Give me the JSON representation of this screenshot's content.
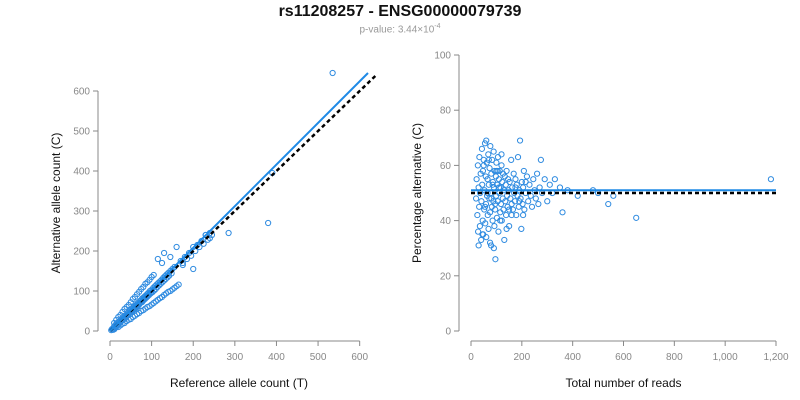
{
  "header": {
    "title": "rs11208257 - ENSG00000079739",
    "pvalue_label": "p-value: 3.44×10",
    "pvalue_exponent": "-4"
  },
  "colors": {
    "points": "#2f8be0",
    "fit_line": "#1f8ae6",
    "reference_line": "#000000",
    "axis": "#888888"
  },
  "chart_data": [
    {
      "type": "scatter",
      "xlabel": "Reference allele count (T)",
      "ylabel": "Alternative allele count (C)",
      "xlim": [
        0,
        620
      ],
      "ylim": [
        0,
        640
      ],
      "xticks": [
        0,
        100,
        200,
        300,
        400,
        500,
        600
      ],
      "xtick_labels": [
        "0",
        "100",
        "200",
        "300",
        "400",
        "500",
        "600"
      ],
      "yticks": [
        0,
        100,
        200,
        300,
        400,
        500,
        600
      ],
      "ytick_labels": [
        "0",
        "100",
        "200",
        "300",
        "400",
        "500",
        "600"
      ],
      "fit_line": {
        "style": "solid",
        "points": [
          [
            0,
            0
          ],
          [
            620,
            645
          ]
        ]
      },
      "reference_line": {
        "style": "dashed",
        "points": [
          [
            0,
            0
          ],
          [
            640,
            640
          ]
        ]
      },
      "points": [
        [
          5,
          5
        ],
        [
          8,
          7
        ],
        [
          10,
          12
        ],
        [
          12,
          9
        ],
        [
          14,
          15
        ],
        [
          15,
          18
        ],
        [
          17,
          14
        ],
        [
          18,
          20
        ],
        [
          20,
          22
        ],
        [
          22,
          19
        ],
        [
          24,
          26
        ],
        [
          25,
          23
        ],
        [
          27,
          30
        ],
        [
          28,
          25
        ],
        [
          30,
          32
        ],
        [
          32,
          28
        ],
        [
          33,
          35
        ],
        [
          35,
          38
        ],
        [
          36,
          31
        ],
        [
          38,
          40
        ],
        [
          40,
          36
        ],
        [
          42,
          45
        ],
        [
          43,
          41
        ],
        [
          45,
          48
        ],
        [
          47,
          44
        ],
        [
          48,
          52
        ],
        [
          50,
          47
        ],
        [
          52,
          55
        ],
        [
          54,
          50
        ],
        [
          55,
          58
        ],
        [
          57,
          53
        ],
        [
          58,
          61
        ],
        [
          60,
          56
        ],
        [
          62,
          64
        ],
        [
          63,
          59
        ],
        [
          65,
          68
        ],
        [
          67,
          62
        ],
        [
          68,
          71
        ],
        [
          70,
          66
        ],
        [
          72,
          75
        ],
        [
          73,
          70
        ],
        [
          75,
          78
        ],
        [
          77,
          72
        ],
        [
          78,
          82
        ],
        [
          80,
          76
        ],
        [
          82,
          85
        ],
        [
          84,
          80
        ],
        [
          85,
          88
        ],
        [
          87,
          83
        ],
        [
          89,
          92
        ],
        [
          90,
          86
        ],
        [
          92,
          95
        ],
        [
          94,
          90
        ],
        [
          96,
          100
        ],
        [
          98,
          94
        ],
        [
          100,
          103
        ],
        [
          102,
          97
        ],
        [
          104,
          108
        ],
        [
          106,
          101
        ],
        [
          108,
          112
        ],
        [
          110,
          105
        ],
        [
          112,
          116
        ],
        [
          114,
          110
        ],
        [
          116,
          120
        ],
        [
          118,
          114
        ],
        [
          120,
          124
        ],
        [
          122,
          118
        ],
        [
          124,
          128
        ],
        [
          126,
          122
        ],
        [
          128,
          133
        ],
        [
          130,
          126
        ],
        [
          132,
          137
        ],
        [
          134,
          130
        ],
        [
          136,
          141
        ],
        [
          138,
          134
        ],
        [
          140,
          145
        ],
        [
          142,
          138
        ],
        [
          145,
          150
        ],
        [
          148,
          144
        ],
        [
          150,
          155
        ],
        [
          10,
          20
        ],
        [
          15,
          28
        ],
        [
          20,
          35
        ],
        [
          25,
          40
        ],
        [
          30,
          48
        ],
        [
          35,
          55
        ],
        [
          40,
          60
        ],
        [
          45,
          65
        ],
        [
          50,
          72
        ],
        [
          55,
          80
        ],
        [
          60,
          85
        ],
        [
          65,
          92
        ],
        [
          70,
          98
        ],
        [
          75,
          105
        ],
        [
          80,
          110
        ],
        [
          85,
          118
        ],
        [
          90,
          122
        ],
        [
          95,
          128
        ],
        [
          100,
          135
        ],
        [
          105,
          140
        ],
        [
          20,
          10
        ],
        [
          25,
          14
        ],
        [
          30,
          18
        ],
        [
          35,
          20
        ],
        [
          40,
          25
        ],
        [
          45,
          28
        ],
        [
          50,
          30
        ],
        [
          55,
          35
        ],
        [
          60,
          38
        ],
        [
          65,
          42
        ],
        [
          70,
          45
        ],
        [
          75,
          50
        ],
        [
          80,
          52
        ],
        [
          85,
          56
        ],
        [
          90,
          60
        ],
        [
          95,
          62
        ],
        [
          100,
          66
        ],
        [
          105,
          70
        ],
        [
          110,
          74
        ],
        [
          115,
          78
        ],
        [
          120,
          82
        ],
        [
          125,
          85
        ],
        [
          130,
          90
        ],
        [
          135,
          94
        ],
        [
          140,
          98
        ],
        [
          145,
          100
        ],
        [
          150,
          104
        ],
        [
          155,
          108
        ],
        [
          160,
          112
        ],
        [
          165,
          116
        ],
        [
          3,
          2
        ],
        [
          6,
          4
        ],
        [
          8,
          3
        ],
        [
          9,
          6
        ],
        [
          11,
          5
        ],
        [
          13,
          10
        ],
        [
          16,
          11
        ],
        [
          19,
          16
        ],
        [
          21,
          17
        ],
        [
          23,
          21
        ],
        [
          26,
          24
        ],
        [
          29,
          27
        ],
        [
          31,
          29
        ],
        [
          34,
          33
        ],
        [
          37,
          34
        ],
        [
          39,
          37
        ],
        [
          41,
          39
        ],
        [
          44,
          42
        ],
        [
          46,
          43
        ],
        [
          49,
          46
        ],
        [
          51,
          49
        ],
        [
          53,
          51
        ],
        [
          56,
          54
        ],
        [
          59,
          57
        ],
        [
          61,
          60
        ],
        [
          64,
          62
        ],
        [
          66,
          65
        ],
        [
          69,
          67
        ],
        [
          71,
          69
        ],
        [
          74,
          72
        ],
        [
          76,
          74
        ],
        [
          79,
          77
        ],
        [
          81,
          79
        ],
        [
          83,
          82
        ],
        [
          86,
          84
        ],
        [
          88,
          86
        ],
        [
          91,
          89
        ],
        [
          93,
          91
        ],
        [
          97,
          95
        ],
        [
          99,
          97
        ],
        [
          170,
          175
        ],
        [
          175,
          170
        ],
        [
          180,
          185
        ],
        [
          185,
          180
        ],
        [
          190,
          195
        ],
        [
          195,
          188
        ],
        [
          200,
          210
        ],
        [
          205,
          200
        ],
        [
          210,
          215
        ],
        [
          215,
          210
        ],
        [
          220,
          225
        ],
        [
          225,
          218
        ],
        [
          230,
          240
        ],
        [
          235,
          228
        ],
        [
          240,
          245
        ],
        [
          245,
          240
        ],
        [
          115,
          180
        ],
        [
          130,
          195
        ],
        [
          155,
          160
        ],
        [
          175,
          165
        ],
        [
          200,
          155
        ],
        [
          230,
          240
        ],
        [
          240,
          232
        ],
        [
          285,
          245
        ],
        [
          380,
          270
        ],
        [
          390,
          395
        ],
        [
          535,
          645
        ],
        [
          160,
          210
        ],
        [
          145,
          185
        ],
        [
          125,
          170
        ]
      ]
    },
    {
      "type": "scatter",
      "xlabel": "Total number of reads",
      "ylabel": "Percentage alternative (C)",
      "xlim": [
        0,
        1200
      ],
      "ylim": [
        0,
        100
      ],
      "xticks": [
        0,
        200,
        400,
        600,
        800,
        1000,
        1200
      ],
      "xtick_labels": [
        "0",
        "200",
        "400",
        "600",
        "800",
        "1,000",
        "1,200"
      ],
      "yticks": [
        0,
        20,
        40,
        60,
        80,
        100
      ],
      "ytick_labels": [
        "0",
        "20",
        "40",
        "60",
        "80",
        "100"
      ],
      "fit_line": {
        "style": "solid",
        "y": 51
      },
      "reference_line": {
        "style": "dashed",
        "y": 50
      },
      "points": [
        [
          20,
          48
        ],
        [
          22,
          55
        ],
        [
          25,
          42
        ],
        [
          27,
          60
        ],
        [
          28,
          36
        ],
        [
          30,
          52
        ],
        [
          32,
          45
        ],
        [
          33,
          63
        ],
        [
          35,
          38
        ],
        [
          36,
          50
        ],
        [
          38,
          57
        ],
        [
          40,
          33
        ],
        [
          41,
          47
        ],
        [
          43,
          66
        ],
        [
          44,
          53
        ],
        [
          46,
          40
        ],
        [
          47,
          58
        ],
        [
          48,
          35
        ],
        [
          50,
          62
        ],
        [
          52,
          44
        ],
        [
          53,
          51
        ],
        [
          55,
          68
        ],
        [
          56,
          39
        ],
        [
          58,
          56
        ],
        [
          59,
          46
        ],
        [
          60,
          34
        ],
        [
          62,
          61
        ],
        [
          63,
          49
        ],
        [
          65,
          55
        ],
        [
          66,
          42
        ],
        [
          68,
          64
        ],
        [
          69,
          37
        ],
        [
          70,
          53
        ],
        [
          72,
          48
        ],
        [
          73,
          59
        ],
        [
          75,
          43
        ],
        [
          76,
          67
        ],
        [
          78,
          50
        ],
        [
          79,
          31
        ],
        [
          80,
          57
        ],
        [
          82,
          45
        ],
        [
          83,
          62
        ],
        [
          85,
          40
        ],
        [
          86,
          54
        ],
        [
          88,
          47
        ],
        [
          89,
          65
        ],
        [
          90,
          52
        ],
        [
          92,
          38
        ],
        [
          93,
          58
        ],
        [
          95,
          44
        ],
        [
          96,
          26
        ],
        [
          98,
          56
        ],
        [
          99,
          49
        ],
        [
          100,
          61
        ],
        [
          102,
          41
        ],
        [
          103,
          53
        ],
        [
          105,
          47
        ],
        [
          106,
          63
        ],
        [
          108,
          36
        ],
        [
          110,
          55
        ],
        [
          111,
          50
        ],
        [
          113,
          58
        ],
        [
          115,
          43
        ],
        [
          116,
          52
        ],
        [
          118,
          46
        ],
        [
          120,
          60
        ],
        [
          121,
          40
        ],
        [
          123,
          54
        ],
        [
          125,
          48
        ],
        [
          126,
          57
        ],
        [
          128,
          44
        ],
        [
          130,
          51
        ],
        [
          131,
          33
        ],
        [
          133,
          56
        ],
        [
          135,
          47
        ],
        [
          137,
          53
        ],
        [
          138,
          42
        ],
        [
          140,
          58
        ],
        [
          142,
          49
        ],
        [
          144,
          45
        ],
        [
          146,
          55
        ],
        [
          148,
          51
        ],
        [
          150,
          38
        ],
        [
          152,
          54
        ],
        [
          155,
          48
        ],
        [
          158,
          62
        ],
        [
          160,
          46
        ],
        [
          162,
          52
        ],
        [
          165,
          44
        ],
        [
          168,
          57
        ],
        [
          170,
          50
        ],
        [
          173,
          47
        ],
        [
          175,
          55
        ],
        [
          178,
          42
        ],
        [
          180,
          53
        ],
        [
          183,
          49
        ],
        [
          185,
          63
        ],
        [
          188,
          45
        ],
        [
          190,
          51
        ],
        [
          193,
          69
        ],
        [
          195,
          48
        ],
        [
          198,
          37
        ],
        [
          200,
          54
        ],
        [
          203,
          46
        ],
        [
          205,
          52
        ],
        [
          208,
          58
        ],
        [
          210,
          44
        ],
        [
          215,
          50
        ],
        [
          220,
          56
        ],
        [
          225,
          47
        ],
        [
          230,
          53
        ],
        [
          235,
          49
        ],
        [
          240,
          45
        ],
        [
          245,
          55
        ],
        [
          250,
          51
        ],
        [
          255,
          48
        ],
        [
          260,
          57
        ],
        [
          265,
          46
        ],
        [
          270,
          52
        ],
        [
          275,
          62
        ],
        [
          280,
          50
        ],
        [
          290,
          55
        ],
        [
          300,
          47
        ],
        [
          310,
          53
        ],
        [
          320,
          50
        ],
        [
          330,
          55
        ],
        [
          350,
          52
        ],
        [
          360,
          43
        ],
        [
          380,
          51
        ],
        [
          420,
          49
        ],
        [
          480,
          51
        ],
        [
          500,
          50
        ],
        [
          540,
          46
        ],
        [
          560,
          49
        ],
        [
          650,
          41
        ],
        [
          1180,
          55
        ],
        [
          30,
          31
        ],
        [
          45,
          35
        ],
        [
          60,
          69
        ],
        [
          75,
          32
        ],
        [
          90,
          30
        ],
        [
          105,
          58
        ],
        [
          120,
          64
        ],
        [
          140,
          37
        ],
        [
          150,
          44
        ],
        [
          160,
          42
        ],
        [
          175,
          52
        ],
        [
          190,
          47
        ],
        [
          205,
          42
        ],
        [
          215,
          54
        ],
        [
          50,
          60
        ],
        [
          55,
          45
        ],
        [
          65,
          50
        ],
        [
          70,
          62
        ],
        [
          80,
          48
        ],
        [
          85,
          53
        ],
        [
          95,
          46
        ],
        [
          100,
          58
        ],
        [
          110,
          52
        ],
        [
          115,
          40
        ]
      ]
    }
  ]
}
